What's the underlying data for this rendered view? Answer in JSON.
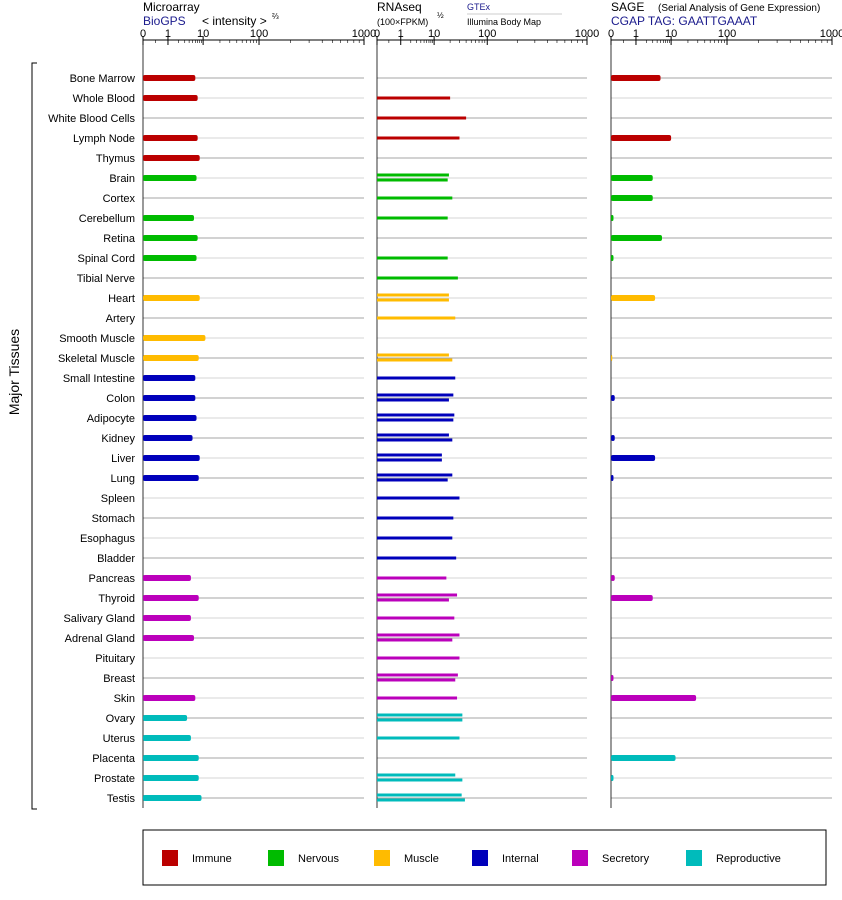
{
  "panels": [
    {
      "title": "Microarray",
      "link": "BioGPS",
      "extra": "< intensity >",
      "sup": "⅔"
    },
    {
      "title": "RNAseq",
      "sub": "(100×FPKM)",
      "sup": "½",
      "link": "GTEx",
      "link2": "Illumina Body Map"
    },
    {
      "title": "SAGE",
      "subtitle": "(Serial Analysis of Gene Expression)",
      "link": "CGAP  TAG: GAATTGAAAT"
    }
  ],
  "y_group_label": "Major Tissues",
  "axis_ticks": [
    "0",
    "1",
    "10",
    "100",
    "1000"
  ],
  "colors": {
    "Immune": "#bb0000",
    "Nervous": "#00bb00",
    "Muscle": "#ffbb00",
    "Internal": "#0000bb",
    "Secretory": "#bb00bb",
    "Reproductive": "#00bbbb"
  },
  "legend": [
    "Immune",
    "Nervous",
    "Muscle",
    "Internal",
    "Secretory",
    "Reproductive"
  ],
  "chart_data": {
    "type": "bar",
    "categories": [
      "Bone Marrow",
      "Whole Blood",
      "White Blood Cells",
      "Lymph Node",
      "Thymus",
      "Brain",
      "Cortex",
      "Cerebellum",
      "Retina",
      "Spinal Cord",
      "Tibial Nerve",
      "Heart",
      "Artery",
      "Smooth Muscle",
      "Skeletal Muscle",
      "Small Intestine",
      "Colon",
      "Adipocyte",
      "Kidney",
      "Liver",
      "Lung",
      "Spleen",
      "Stomach",
      "Esophagus",
      "Bladder",
      "Pancreas",
      "Thyroid",
      "Salivary Gland",
      "Adrenal Gland",
      "Pituitary",
      "Breast",
      "Skin",
      "Ovary",
      "Uterus",
      "Placenta",
      "Prostate",
      "Testis"
    ],
    "category_group": [
      "Immune",
      "Immune",
      "Immune",
      "Immune",
      "Immune",
      "Nervous",
      "Nervous",
      "Nervous",
      "Nervous",
      "Nervous",
      "Nervous",
      "Muscle",
      "Muscle",
      "Muscle",
      "Muscle",
      "Internal",
      "Internal",
      "Internal",
      "Internal",
      "Internal",
      "Internal",
      "Internal",
      "Internal",
      "Internal",
      "Internal",
      "Secretory",
      "Secretory",
      "Secretory",
      "Secretory",
      "Secretory",
      "Secretory",
      "Secretory",
      "Reproductive",
      "Reproductive",
      "Reproductive",
      "Reproductive",
      "Reproductive"
    ],
    "axis_scale": "log-like (values 0 to 1000)",
    "xlim": [
      0,
      1000
    ],
    "series": [
      {
        "values": [
          6,
          7,
          null,
          7,
          8,
          6.5,
          null,
          5.5,
          7,
          6.5,
          null,
          8,
          null,
          11,
          7.5,
          6,
          6,
          6.5,
          5,
          8,
          7.5,
          null,
          null,
          null,
          null,
          4.5,
          7.5,
          4.5,
          5.5,
          null,
          null,
          6,
          3.5,
          4.5,
          7.5,
          7.5,
          9
        ]
      },
      {
        "values": [
          [
            null
          ],
          [
            20
          ],
          [
            40
          ],
          [
            30
          ],
          [
            null
          ],
          [
            19,
            18
          ],
          [
            22
          ],
          [
            18
          ],
          [
            null
          ],
          [
            18
          ],
          [
            28
          ],
          [
            19,
            19
          ],
          [
            25
          ],
          [
            null
          ],
          [
            19,
            22
          ],
          [
            25
          ],
          [
            23,
            19
          ],
          [
            24,
            23
          ],
          [
            19,
            22
          ],
          [
            14,
            14
          ],
          [
            22,
            18
          ],
          [
            30
          ],
          [
            23
          ],
          [
            22
          ],
          [
            26
          ],
          [
            17
          ],
          [
            27,
            19
          ],
          [
            24
          ],
          [
            30,
            22
          ],
          [
            30
          ],
          [
            28,
            25
          ],
          [
            27
          ],
          [
            34,
            34
          ],
          [
            30
          ],
          [
            null
          ],
          [
            25,
            34
          ],
          [
            33,
            38
          ]
        ]
      },
      {
        "values": [
          5,
          null,
          null,
          10,
          null,
          3,
          3,
          0.1,
          5.5,
          0.1,
          null,
          3.5,
          null,
          null,
          0.05,
          null,
          0.15,
          null,
          0.15,
          3.5,
          0.1,
          null,
          null,
          null,
          null,
          0.15,
          3,
          null,
          null,
          null,
          0.1,
          28,
          null,
          null,
          12,
          0.1,
          null
        ]
      }
    ]
  }
}
